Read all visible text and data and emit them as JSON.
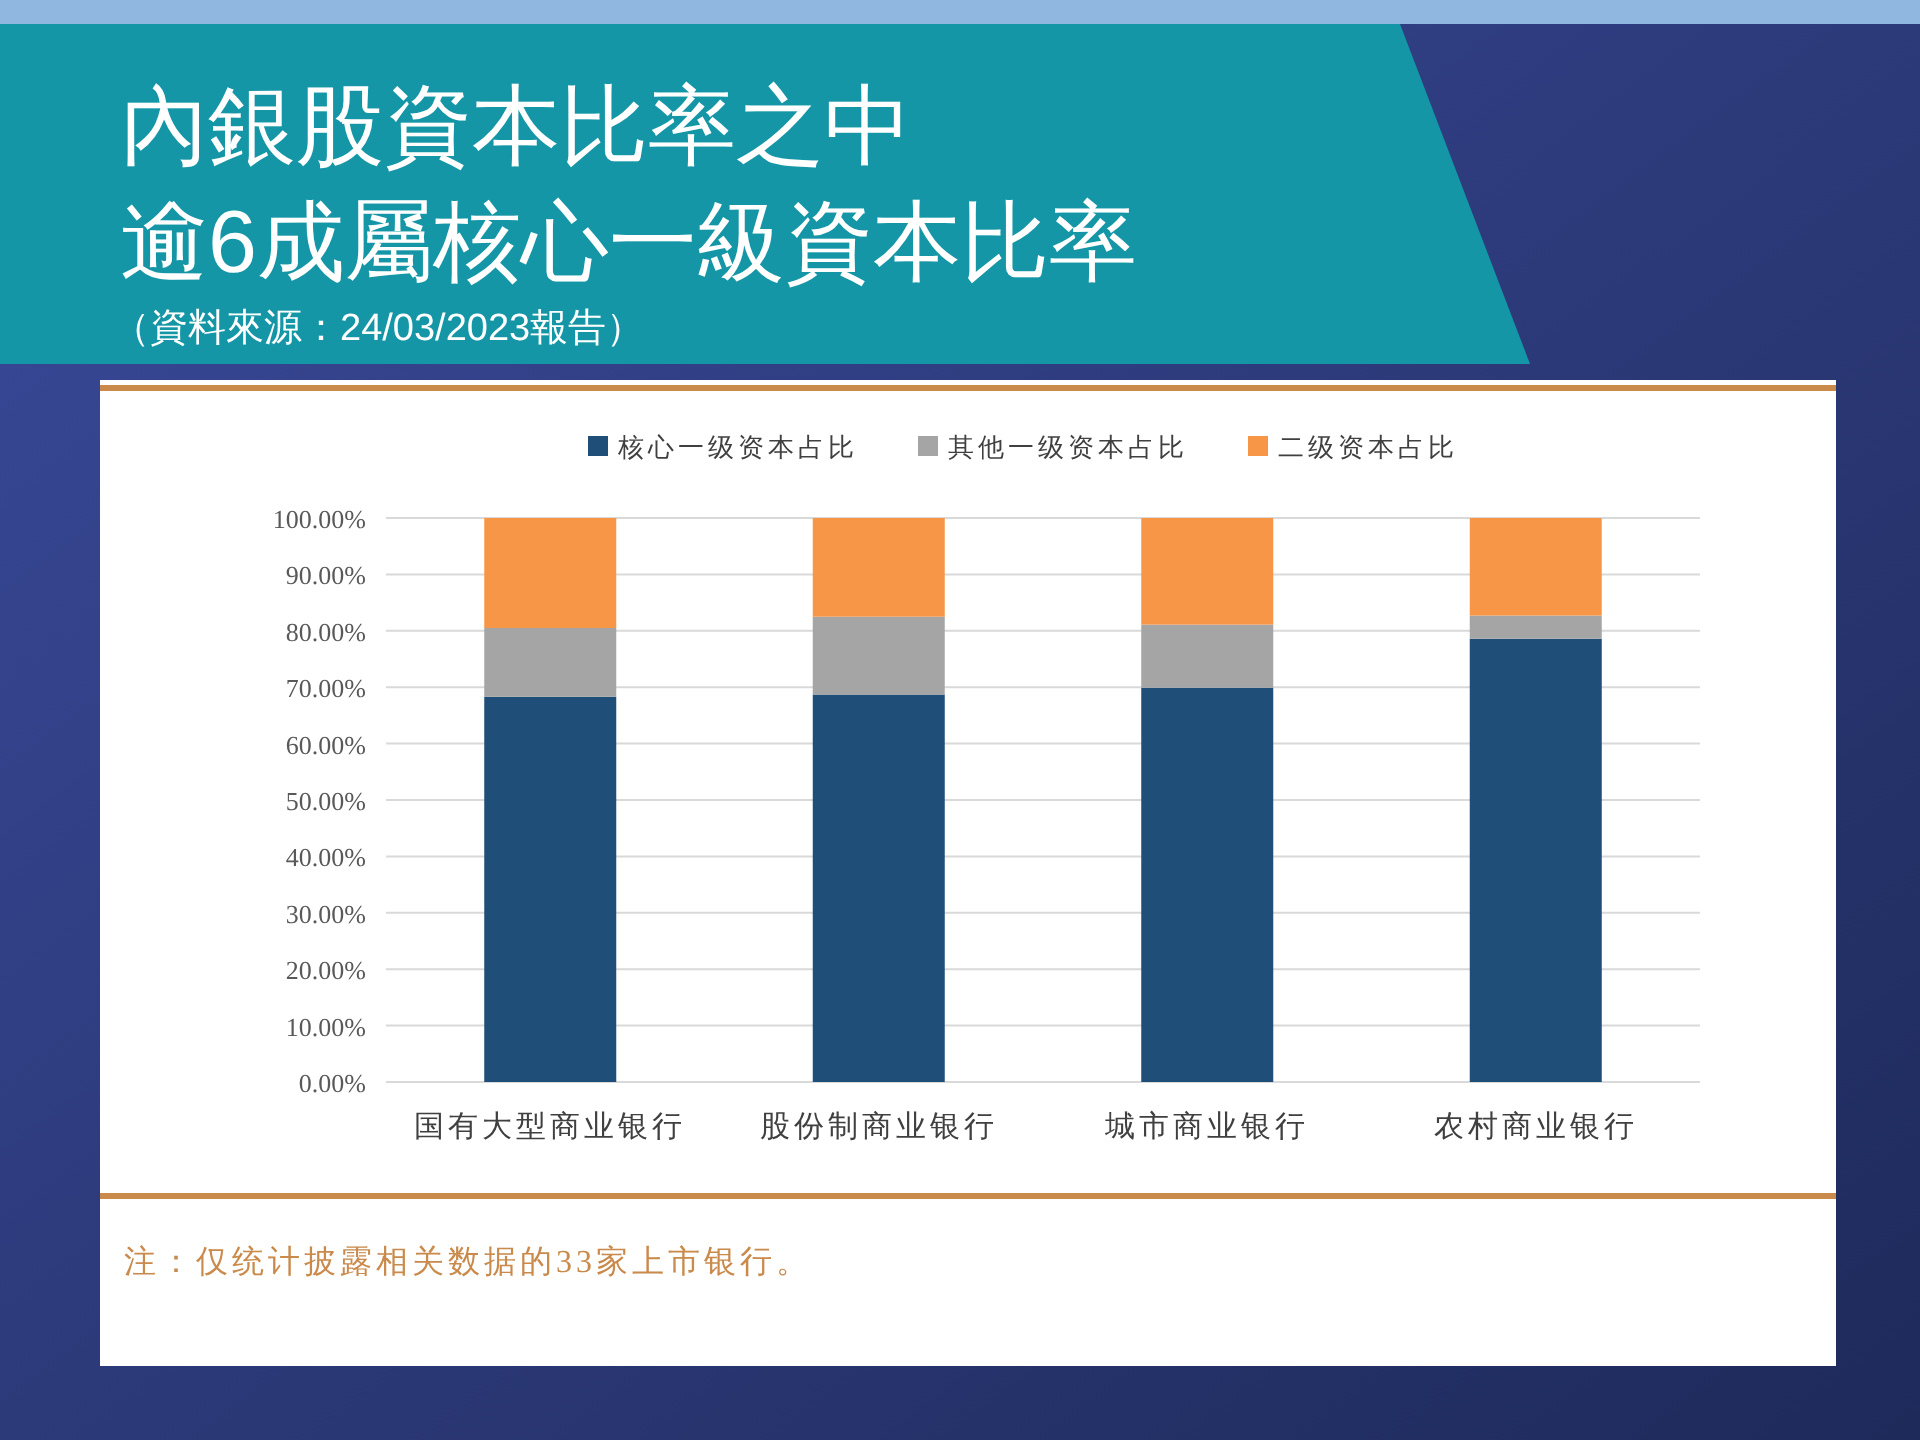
{
  "chart_data": {
    "type": "bar",
    "stacked": true,
    "title": "內銀股資本比率之中逾6成屬核心一級資本比率",
    "subtitle": "（資料來源：24/03/2023報告）",
    "categories": [
      "国有大型商业银行",
      "股份制商业银行",
      "城市商业银行",
      "农村商业银行"
    ],
    "series": [
      {
        "name": "核心一级资本占比",
        "color": "#1f4e79",
        "values": [
          68.3,
          68.7,
          69.9,
          78.6
        ]
      },
      {
        "name": "其他一级资本占比",
        "color": "#a5a5a5",
        "values": [
          12.2,
          13.8,
          11.2,
          4.1
        ]
      },
      {
        "name": "二级资本占比",
        "color": "#f79646",
        "values": [
          19.5,
          17.5,
          18.9,
          17.3
        ]
      }
    ],
    "ylim": [
      0,
      100
    ],
    "yticks": [
      {
        "value": 0,
        "label": "0.00%"
      },
      {
        "value": 10,
        "label": "10.00%"
      },
      {
        "value": 20,
        "label": "20.00%"
      },
      {
        "value": 30,
        "label": "30.00%"
      },
      {
        "value": 40,
        "label": "40.00%"
      },
      {
        "value": 50,
        "label": "50.00%"
      },
      {
        "value": 60,
        "label": "60.00%"
      },
      {
        "value": 70,
        "label": "70.00%"
      },
      {
        "value": 80,
        "label": "80.00%"
      },
      {
        "value": 90,
        "label": "90.00%"
      },
      {
        "value": 100,
        "label": "100.00%"
      }
    ],
    "grid": "y",
    "legend": "top",
    "annotations": [
      "注：仅统计披露相关数据的33家上市银行。"
    ]
  }
}
